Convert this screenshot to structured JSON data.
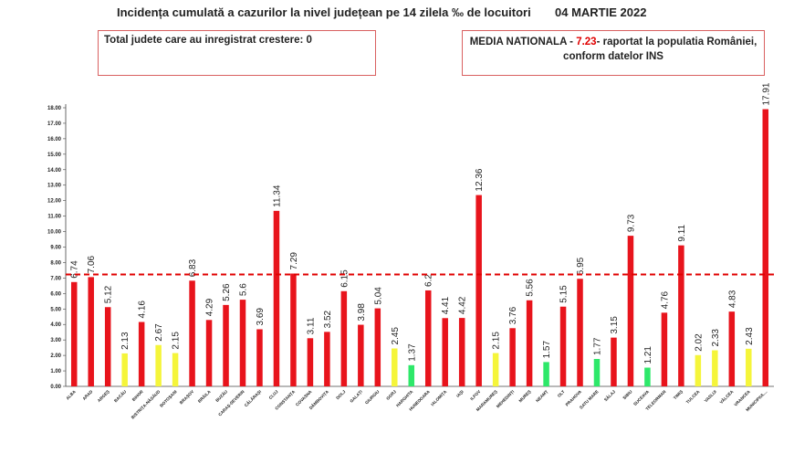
{
  "header": {
    "title": "Incidența cumulată a cazurilor la nivel județean pe 14 zilela ‰ de locuitori",
    "date": "04 MARTIE 2022"
  },
  "box_left": {
    "text": "Total judete care au inregistrat crestere: 0"
  },
  "box_right": {
    "prefix": "MEDIA NATIONALA - ",
    "value": "7.23",
    "suffix": "-  raportat la populatia României,",
    "line2": "conform datelor INS"
  },
  "colors": {
    "red": "#e8141c",
    "yellow": "#f5f53a",
    "green": "#2ee86a",
    "reference_line": "#e00000"
  },
  "chart_data": {
    "type": "bar",
    "title": "Incidența cumulată a cazurilor la nivel județean pe 14 zilela ‰ de locuitori",
    "xlabel": "",
    "ylabel": "",
    "ylim": [
      0,
      18
    ],
    "yticks": [
      "0.00",
      "1.00",
      "2.00",
      "3.00",
      "4.00",
      "5.00",
      "6.00",
      "7.00",
      "8.00",
      "9.00",
      "10.00",
      "11.00",
      "12.00",
      "13.00",
      "14.00",
      "15.00",
      "16.00",
      "17.00",
      "18.00"
    ],
    "reference_line": 7.23,
    "grid": false,
    "categories": [
      "ALBA",
      "ARAD",
      "ARGEȘ",
      "BACĂU",
      "BIHOR",
      "BISTRIȚA-NĂSĂUD",
      "BOTOȘANI",
      "BRAȘOV",
      "BRĂILA",
      "BUZĂU",
      "CARAȘ-SEVERIN",
      "CĂLĂRAȘI",
      "CLUJ",
      "CONSTANȚA",
      "COVASNA",
      "DÂMBOVIȚA",
      "DOLJ",
      "GALAȚI",
      "GIURGIU",
      "GORJ",
      "HARGHITA",
      "HUNEDOARA",
      "IALOMIȚA",
      "IAȘI",
      "ILFOV",
      "MARAMUREȘ",
      "MEHEDINȚI",
      "MUREȘ",
      "NEAMȚ",
      "OLT",
      "PRAHOVA",
      "SATU MARE",
      "SĂLAJ",
      "SIBIU",
      "SUCEAVA",
      "TELEORMAN",
      "TIMIȘ",
      "TULCEA",
      "VASLUI",
      "VÂLCEA",
      "VRANCEA",
      "MUNICIPIUL..."
    ],
    "values": [
      6.74,
      7.06,
      5.12,
      2.13,
      4.16,
      2.67,
      2.15,
      6.83,
      4.29,
      5.26,
      5.6,
      3.69,
      11.34,
      7.29,
      3.11,
      3.52,
      6.15,
      3.98,
      5.04,
      2.45,
      1.37,
      6.2,
      4.41,
      4.42,
      12.36,
      2.15,
      3.76,
      5.56,
      1.57,
      5.15,
      6.95,
      1.77,
      3.15,
      9.73,
      1.21,
      4.76,
      9.11,
      2.02,
      2.33,
      4.83,
      2.43,
      17.91
    ],
    "value_labels": [
      "6.74",
      "7.06",
      "5.12",
      "2.13",
      "4.16",
      "2.67",
      "2.15",
      "6.83",
      "4.29",
      "5.26",
      "5.6",
      "3.69",
      "11.34",
      "7.29",
      "3.11",
      "3.52",
      "6.15",
      "3.98",
      "5.04",
      "2.45",
      "1.37",
      "6.2",
      "4.41",
      "4.42",
      "12.36",
      "2.15",
      "3.76",
      "5.56",
      "1.57",
      "5.15",
      "6.95",
      "1.77",
      "3.15",
      "9.73",
      "1.21",
      "4.76",
      "9.11",
      "2.02",
      "2.33",
      "4.83",
      "2.43",
      "17.91"
    ],
    "bar_colors": [
      "red",
      "red",
      "red",
      "yellow",
      "red",
      "yellow",
      "yellow",
      "red",
      "red",
      "red",
      "red",
      "red",
      "red",
      "red",
      "red",
      "red",
      "red",
      "red",
      "red",
      "yellow",
      "green",
      "red",
      "red",
      "red",
      "red",
      "yellow",
      "red",
      "red",
      "green",
      "red",
      "red",
      "green",
      "red",
      "red",
      "green",
      "red",
      "red",
      "yellow",
      "yellow",
      "red",
      "yellow",
      "red"
    ]
  }
}
